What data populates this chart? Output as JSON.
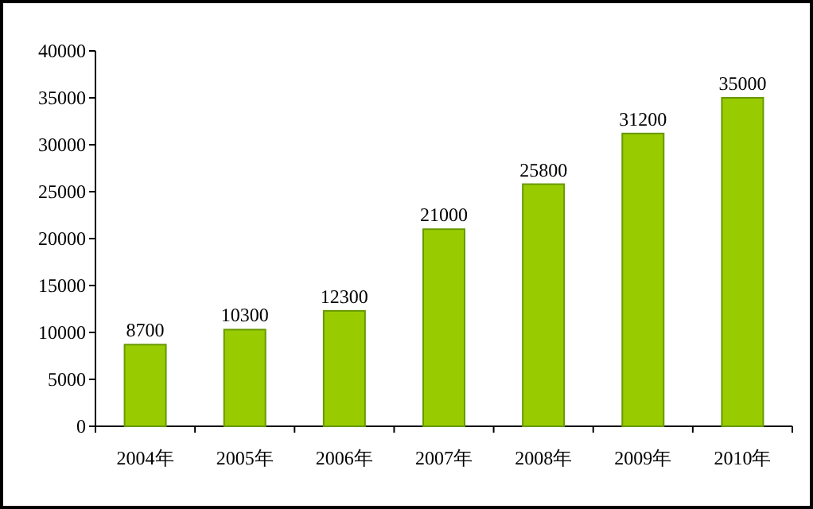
{
  "chart_data": {
    "type": "bar",
    "categories": [
      "2004年",
      "2005年",
      "2006年",
      "2007年",
      "2008年",
      "2009年",
      "2010年"
    ],
    "values": [
      8700,
      10300,
      12300,
      21000,
      25800,
      31200,
      35000
    ],
    "color": "#99cc00",
    "ylim": [
      0,
      40000
    ],
    "yticks": [
      0,
      5000,
      10000,
      15000,
      20000,
      25000,
      30000,
      35000,
      40000
    ],
    "data_labels": true
  }
}
